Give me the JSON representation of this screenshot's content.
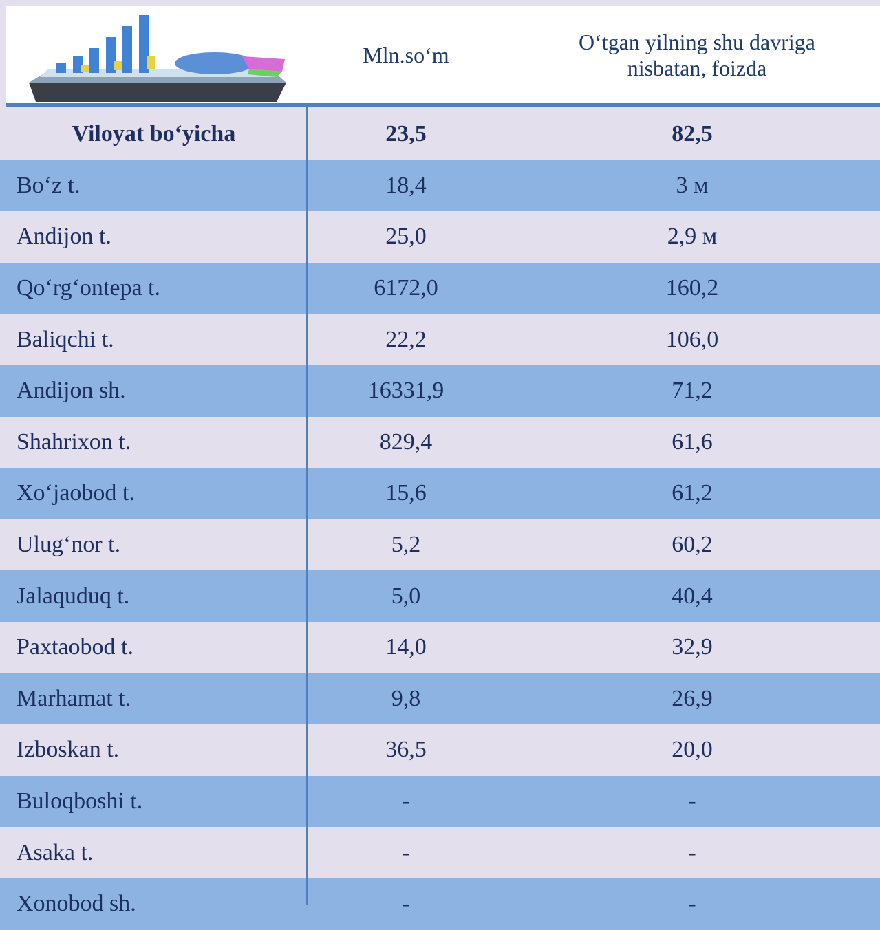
{
  "header": {
    "columns": [
      "Mln.so‘m",
      "O‘tgan yilning shu davriga nisbatan, foizda"
    ]
  },
  "table": {
    "rows": [
      [
        "Viloyat bo‘yicha",
        "23,5",
        "82,5"
      ],
      [
        "Bo‘z t.",
        "18,4",
        "3 м"
      ],
      [
        "Andijon t.",
        "25,0",
        "2,9 м"
      ],
      [
        "Qo‘rg‘ontepa t.",
        "6172,0",
        "160,2"
      ],
      [
        "Baliqchi t.",
        "22,2",
        "106,0"
      ],
      [
        "Andijon sh.",
        "16331,9",
        "71,2"
      ],
      [
        "Shahrixon t.",
        "829,4",
        "61,6"
      ],
      [
        "Xo‘jaobod t.",
        "15,6",
        "61,2"
      ],
      [
        "Ulug‘nor t.",
        "5,2",
        "60,2"
      ],
      [
        "Jalaquduq t.",
        "5,0",
        "40,4"
      ],
      [
        "Paxtaobod t.",
        "14,0",
        "32,9"
      ],
      [
        "Marhamat t.",
        "9,8",
        "26,9"
      ],
      [
        "Izboskan t.",
        "36,5",
        "20,0"
      ],
      [
        "Buloqboshi t.",
        "-",
        "-"
      ],
      [
        "Asaka t.",
        "-",
        "-"
      ],
      [
        "Xonobod sh.",
        "-",
        "-"
      ]
    ]
  }
}
